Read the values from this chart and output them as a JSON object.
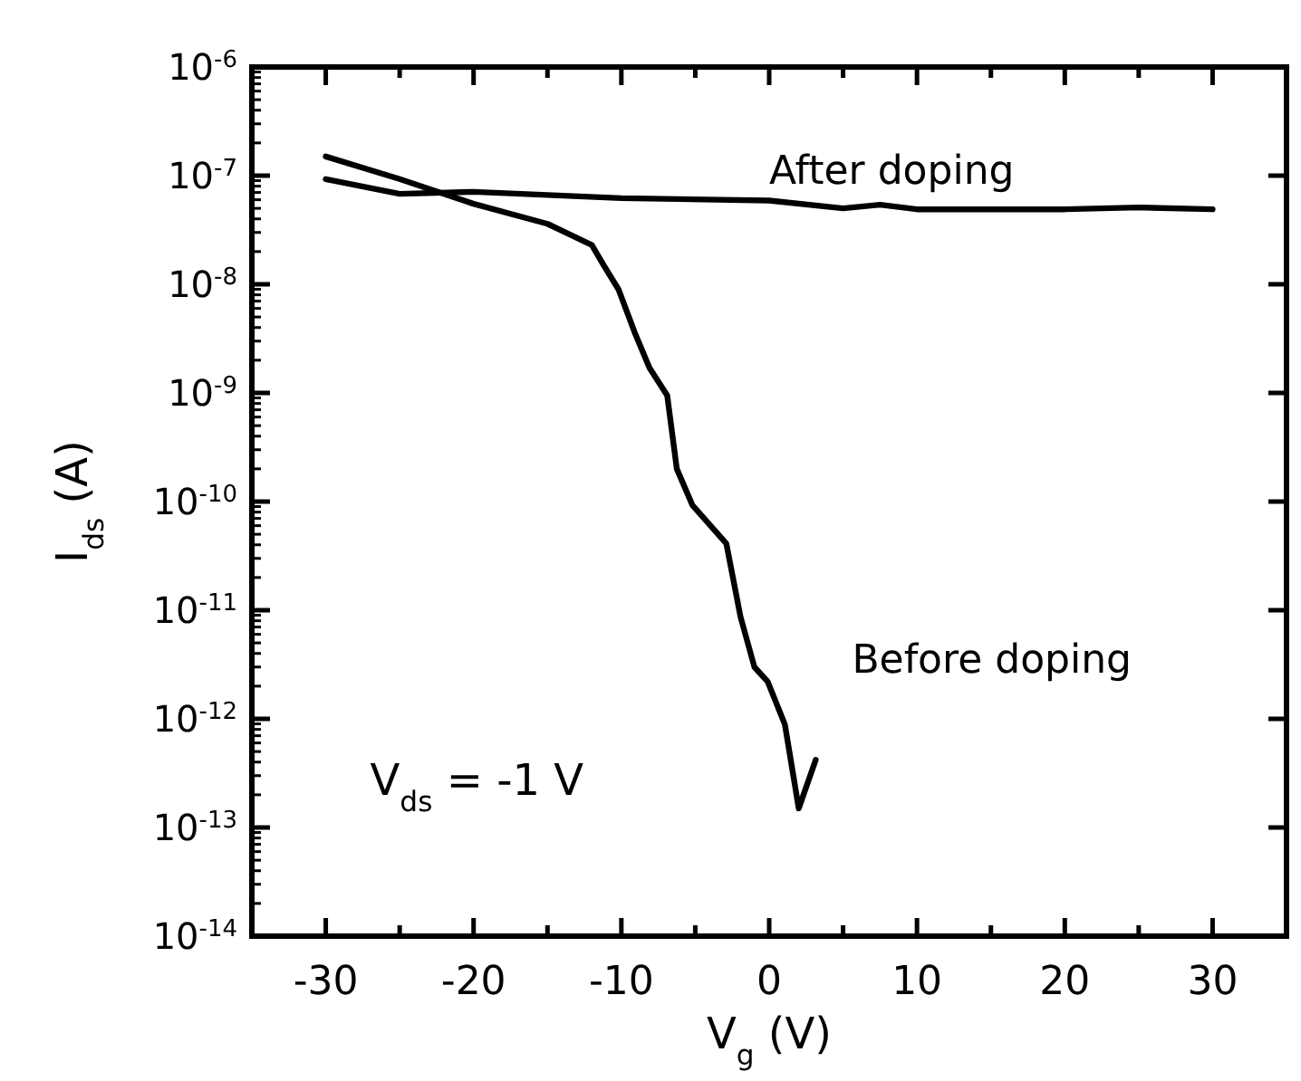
{
  "chart_data": {
    "type": "line",
    "xlabel": "V$_{g}$ (V)",
    "ylabel": "I$_{ds}$ (A)",
    "log": "y",
    "xlim": [
      -35,
      35
    ],
    "ylim": [
      1e-14,
      1e-06
    ],
    "xticks": [
      -30,
      {
        "value": -25,
        "label": null
      },
      -20,
      {
        "value": -15,
        "label": null
      },
      -10,
      {
        "value": -5,
        "label": null
      },
      0,
      {
        "value": 5,
        "label": null
      },
      10,
      {
        "value": 15,
        "label": null
      },
      20,
      {
        "value": 25,
        "label": null
      },
      30
    ],
    "yticks": [
      {
        "value": 1e-14,
        "label": "10$^{-14}$"
      },
      {
        "value": 1e-13,
        "label": "10$^{-13}$"
      },
      {
        "value": 1e-12,
        "label": "10$^{-12}$"
      },
      {
        "value": 1e-11,
        "label": "10$^{-11}$"
      },
      {
        "value": 1e-10,
        "label": "10$^{-10}$"
      },
      {
        "value": 1e-09,
        "label": "10$^{-9}$"
      },
      {
        "value": 1e-08,
        "label": "10$^{-8}$"
      },
      {
        "value": 1e-07,
        "label": "10$^{-7}$"
      },
      {
        "value": 1e-06,
        "label": "10$^{-6}$"
      }
    ],
    "grid": false,
    "line_style": "solid",
    "marker": "none",
    "series": [
      {
        "name": "After doping",
        "color": "#000000",
        "x": [
          -30,
          -25,
          -20,
          -10,
          0,
          5,
          7.5,
          10,
          20,
          25,
          30
        ],
        "values": [
          9.3e-08,
          6.8e-08,
          7.1e-08,
          6.2e-08,
          5.9e-08,
          5e-08,
          5.4e-08,
          4.9e-08,
          4.9e-08,
          5.1e-08,
          4.9e-08
        ]
      },
      {
        "name": "Before doping",
        "color": "#000000",
        "x": [
          -30,
          -25,
          -20,
          -15,
          -12,
          -11.2,
          -10.2,
          -9.1,
          -8.1,
          -6.9,
          -6.25,
          -5.2,
          -2.9,
          -1.94,
          -1.0,
          -0.1,
          1.06,
          2.0,
          3.15
        ],
        "values": [
          1.5e-07,
          9.3e-08,
          5.5e-08,
          3.6e-08,
          2.3e-08,
          1.5e-08,
          9e-09,
          3.6e-09,
          1.7e-09,
          9.5e-10,
          2e-10,
          9.3e-11,
          4.1e-11,
          8.7e-12,
          3e-12,
          2.2e-12,
          8.9e-13,
          1.5e-13,
          4.2e-13
        ]
      }
    ],
    "annotations": [
      "V$_{ds}$ = -1 V"
    ]
  }
}
